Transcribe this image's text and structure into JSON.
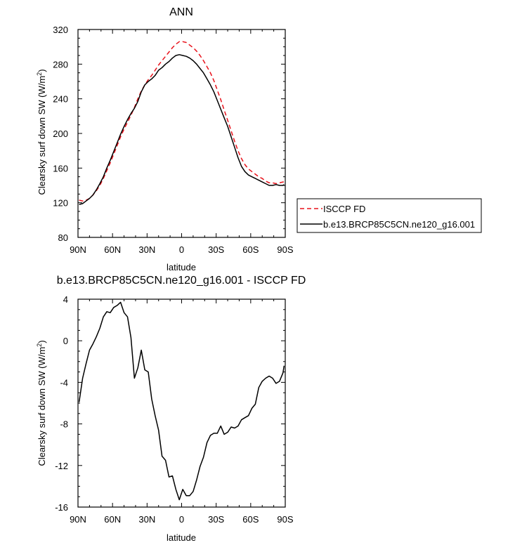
{
  "chart_data": [
    {
      "type": "line",
      "title": "ANN",
      "xlabel": "latitude",
      "ylabel": "Clearsky surf down SW (W/m²)",
      "ylabel_main": "Clearsky surf down SW (W/m",
      "ylabel_sup": "2",
      "ylabel_tail": ")",
      "xlim": [
        90,
        -90
      ],
      "ylim": [
        80,
        320
      ],
      "x_ticks": [
        90,
        60,
        30,
        0,
        -30,
        -60,
        -90
      ],
      "x_tick_labels": [
        "90N",
        "60N",
        "30N",
        "0",
        "30S",
        "60S",
        "90S"
      ],
      "y_ticks": [
        80,
        120,
        160,
        200,
        240,
        280,
        320
      ],
      "y_tick_labels": [
        "80",
        "120",
        "160",
        "200",
        "240",
        "280",
        "320"
      ],
      "grid": false,
      "legend_position": "right",
      "legend_entries": [
        "ISCCP FD",
        "b.e13.BRCP85C5CN.ne120_g16.001"
      ],
      "series": [
        {
          "name": "ISCCP FD",
          "color": "#e8121b",
          "dash": "dashed",
          "x": [
            89,
            86,
            83,
            80,
            77,
            74,
            71,
            68,
            65,
            62,
            59,
            56,
            53,
            50,
            47,
            44,
            41,
            38,
            35,
            32,
            29,
            26,
            23,
            20,
            17,
            14,
            11,
            8,
            5,
            2,
            -1,
            -4,
            -7,
            -10,
            -13,
            -16,
            -19,
            -22,
            -25,
            -28,
            -31,
            -34,
            -37,
            -40,
            -43,
            -46,
            -49,
            -52,
            -55,
            -58,
            -61,
            -64,
            -67,
            -70,
            -73,
            -76,
            -79,
            -82,
            -85,
            -88,
            -89
          ],
          "y": [
            123,
            122,
            123,
            125,
            129,
            134,
            140,
            148,
            157,
            166,
            176,
            186,
            196,
            205,
            213,
            221,
            230,
            240,
            249,
            256,
            262,
            267,
            273,
            279,
            284,
            289,
            294,
            299,
            303,
            306,
            306,
            305,
            302,
            299,
            295,
            290,
            284,
            277,
            270,
            261,
            250,
            239,
            227,
            215,
            203,
            191,
            180,
            171,
            164,
            159,
            156,
            153,
            150,
            148,
            145,
            143,
            143,
            142,
            143,
            144,
            144
          ]
        },
        {
          "name": "b.e13.BRCP85C5CN.ne120_g16.001",
          "color": "#000000",
          "dash": "solid",
          "x": [
            89,
            86,
            83,
            80,
            77,
            74,
            71,
            68,
            65,
            62,
            59,
            56,
            53,
            50,
            47,
            44,
            41,
            38,
            35,
            32,
            29,
            26,
            23,
            20,
            17,
            14,
            11,
            8,
            5,
            2,
            -1,
            -4,
            -7,
            -10,
            -13,
            -16,
            -19,
            -22,
            -25,
            -28,
            -31,
            -34,
            -37,
            -40,
            -43,
            -46,
            -49,
            -52,
            -55,
            -58,
            -61,
            -64,
            -67,
            -70,
            -73,
            -76,
            -79,
            -82,
            -85,
            -88,
            -89
          ],
          "y": [
            118,
            119,
            122,
            125,
            129,
            135,
            142,
            150,
            160,
            169,
            179,
            189,
            199,
            208,
            216,
            223,
            229,
            237,
            248,
            256,
            260,
            263,
            267,
            273,
            276,
            280,
            283,
            287,
            290,
            291,
            290,
            289,
            287,
            284,
            280,
            275,
            270,
            263,
            256,
            248,
            238,
            228,
            218,
            208,
            196,
            184,
            172,
            162,
            156,
            152,
            150,
            148,
            146,
            144,
            142,
            140,
            140,
            141,
            140,
            140,
            141
          ]
        }
      ]
    },
    {
      "type": "line",
      "title": "b.e13.BRCP85C5CN.ne120_g16.001 - ISCCP FD",
      "xlabel": "latitude",
      "ylabel": "Clearsky surf down SW (W/m²)",
      "ylabel_main": "Clearsky surf down SW (W/m",
      "ylabel_sup": "2",
      "ylabel_tail": ")",
      "xlim": [
        90,
        -90
      ],
      "ylim": [
        -16,
        4
      ],
      "x_ticks": [
        90,
        60,
        30,
        0,
        -30,
        -60,
        -90
      ],
      "x_tick_labels": [
        "90N",
        "60N",
        "30N",
        "0",
        "30S",
        "60S",
        "90S"
      ],
      "y_ticks": [
        -16,
        -12,
        -8,
        -4,
        0,
        4
      ],
      "y_tick_labels": [
        "-16",
        "-12",
        "-8",
        "-4",
        "0",
        "4"
      ],
      "grid": false,
      "series": [
        {
          "color": "#000000",
          "dash": "solid",
          "x": [
            89,
            86,
            83,
            80,
            77,
            74,
            71,
            68,
            65,
            62,
            59,
            56,
            53,
            50,
            47,
            44,
            41,
            38,
            35,
            32,
            29,
            26,
            23,
            20,
            17,
            14,
            11,
            8,
            5,
            2,
            -1,
            -4,
            -7,
            -10,
            -13,
            -16,
            -19,
            -22,
            -25,
            -28,
            -31,
            -34,
            -37,
            -40,
            -43,
            -46,
            -49,
            -52,
            -55,
            -58,
            -61,
            -64,
            -67,
            -70,
            -73,
            -76,
            -79,
            -82,
            -85,
            -88,
            -89
          ],
          "y": [
            -5.9,
            -3.6,
            -2.2,
            -0.9,
            -0.3,
            0.4,
            1.2,
            2.3,
            2.8,
            2.7,
            3.2,
            3.4,
            3.7,
            2.7,
            2.3,
            0.3,
            -3.6,
            -2.6,
            -0.9,
            -2.8,
            -3.0,
            -5.6,
            -7.2,
            -8.6,
            -11.1,
            -11.5,
            -13.1,
            -13.0,
            -14.3,
            -15.3,
            -14.3,
            -14.9,
            -14.9,
            -14.5,
            -13.4,
            -12.1,
            -11.2,
            -9.8,
            -9.1,
            -8.9,
            -8.9,
            -8.2,
            -9.0,
            -8.8,
            -8.3,
            -8.4,
            -8.2,
            -7.6,
            -7.4,
            -7.2,
            -6.5,
            -6.1,
            -4.5,
            -3.9,
            -3.6,
            -3.4,
            -3.6,
            -4.1,
            -3.9,
            -3.1,
            -2.4
          ]
        }
      ]
    }
  ]
}
